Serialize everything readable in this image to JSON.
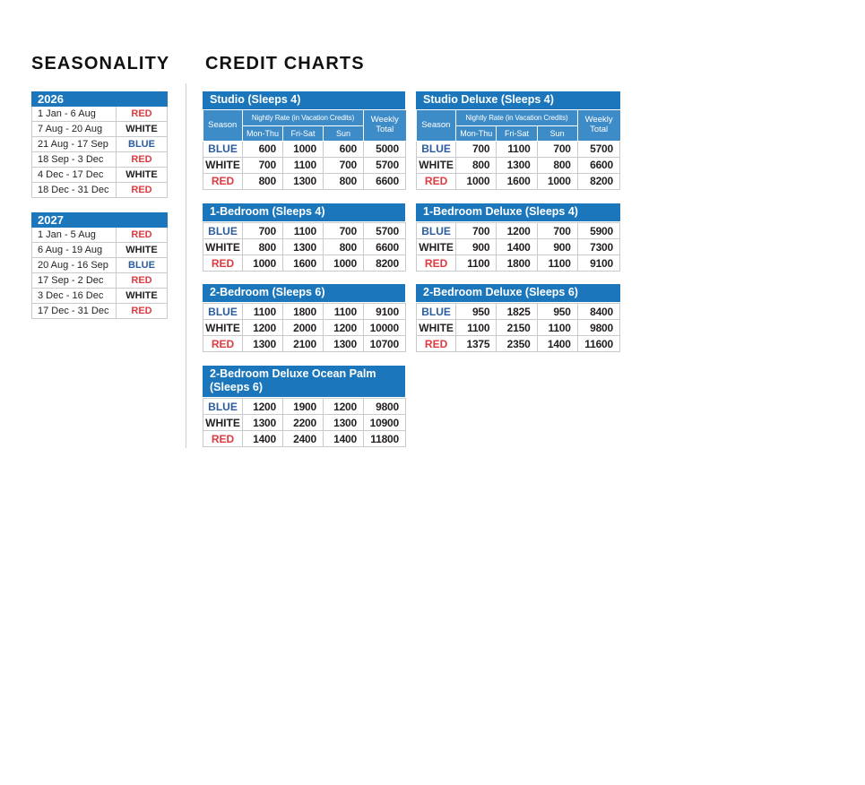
{
  "headings": {
    "seasonality": "SEASONALITY",
    "credit_charts": "CREDIT CHARTS"
  },
  "colors": {
    "header_blue": "#1b76bc",
    "subheader_blue": "#3e8cc7",
    "blue": "#2b5d9e",
    "white": "#231f20",
    "red": "#de3a40",
    "text": "#231f20",
    "border": "#c9cacb"
  },
  "seasonality": {
    "tables": [
      {
        "year": "2026",
        "rows": [
          {
            "dates": "1 Jan - 6 Aug",
            "season": "RED"
          },
          {
            "dates": "7 Aug - 20 Aug",
            "season": "WHITE"
          },
          {
            "dates": "21 Aug - 17 Sep",
            "season": "BLUE"
          },
          {
            "dates": "18 Sep - 3 Dec",
            "season": "RED"
          },
          {
            "dates": "4 Dec - 17 Dec",
            "season": "WHITE"
          },
          {
            "dates": "18 Dec - 31 Dec",
            "season": "RED"
          }
        ]
      },
      {
        "year": "2027",
        "rows": [
          {
            "dates": "1 Jan - 5 Aug",
            "season": "RED"
          },
          {
            "dates": "6 Aug - 19 Aug",
            "season": "WHITE"
          },
          {
            "dates": "20 Aug - 16 Sep",
            "season": "BLUE"
          },
          {
            "dates": "17 Sep - 2 Dec",
            "season": "RED"
          },
          {
            "dates": "3 Dec - 16 Dec",
            "season": "WHITE"
          },
          {
            "dates": "17 Dec - 31 Dec",
            "season": "RED"
          }
        ]
      }
    ]
  },
  "credit_charts": {
    "header": {
      "season_label": "Season",
      "nightly_label": "Nightly Rate (in Vacation Credits)",
      "day_columns": [
        "Mon-Thu",
        "Fri-Sat",
        "Sun"
      ],
      "weekly_label": "Weekly Total"
    },
    "tables": [
      {
        "title": "Studio (Sleeps 4)",
        "has_header": true,
        "rows": [
          [
            "BLUE",
            "600",
            "1000",
            "600",
            "5000"
          ],
          [
            "WHITE",
            "700",
            "1100",
            "700",
            "5700"
          ],
          [
            "RED",
            "800",
            "1300",
            "800",
            "6600"
          ]
        ]
      },
      {
        "title": "Studio Deluxe (Sleeps 4)",
        "has_header": true,
        "rows": [
          [
            "BLUE",
            "700",
            "1100",
            "700",
            "5700"
          ],
          [
            "WHITE",
            "800",
            "1300",
            "800",
            "6600"
          ],
          [
            "RED",
            "1000",
            "1600",
            "1000",
            "8200"
          ]
        ]
      },
      {
        "title": "1-Bedroom (Sleeps 4)",
        "has_header": false,
        "rows": [
          [
            "BLUE",
            "700",
            "1100",
            "700",
            "5700"
          ],
          [
            "WHITE",
            "800",
            "1300",
            "800",
            "6600"
          ],
          [
            "RED",
            "1000",
            "1600",
            "1000",
            "8200"
          ]
        ]
      },
      {
        "title": "1-Bedroom Deluxe (Sleeps 4)",
        "has_header": false,
        "rows": [
          [
            "BLUE",
            "700",
            "1200",
            "700",
            "5900"
          ],
          [
            "WHITE",
            "900",
            "1400",
            "900",
            "7300"
          ],
          [
            "RED",
            "1100",
            "1800",
            "1100",
            "9100"
          ]
        ]
      },
      {
        "title": "2-Bedroom (Sleeps 6)",
        "has_header": false,
        "rows": [
          [
            "BLUE",
            "1100",
            "1800",
            "1100",
            "9100"
          ],
          [
            "WHITE",
            "1200",
            "2000",
            "1200",
            "10000"
          ],
          [
            "RED",
            "1300",
            "2100",
            "1300",
            "10700"
          ]
        ]
      },
      {
        "title": "2-Bedroom Deluxe (Sleeps 6)",
        "has_header": false,
        "rows": [
          [
            "BLUE",
            "950",
            "1825",
            "950",
            "8400"
          ],
          [
            "WHITE",
            "1100",
            "2150",
            "1100",
            "9800"
          ],
          [
            "RED",
            "1375",
            "2350",
            "1400",
            "11600"
          ]
        ]
      },
      {
        "title": "2-Bedroom Deluxe Ocean Palm (Sleeps 6)",
        "has_header": false,
        "rows": [
          [
            "BLUE",
            "1200",
            "1900",
            "1200",
            "9800"
          ],
          [
            "WHITE",
            "1300",
            "2200",
            "1300",
            "10900"
          ],
          [
            "RED",
            "1400",
            "2400",
            "1400",
            "11800"
          ]
        ]
      }
    ]
  }
}
